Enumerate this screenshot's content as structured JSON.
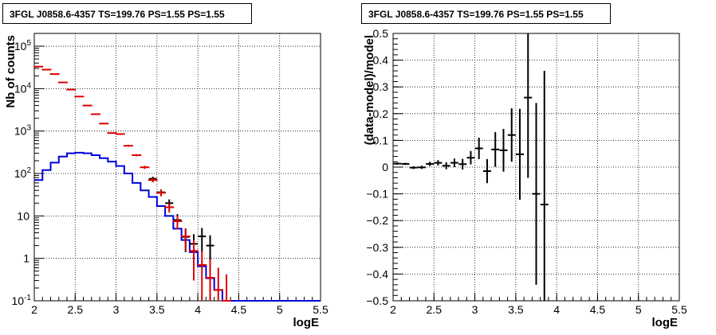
{
  "chart_data": [
    {
      "type": "line",
      "title": "3FGL J0858.6-4357 TS=199.76 PS=1.55 PS=1.55",
      "xlabel": "logE",
      "ylabel": "Nb of counts",
      "xlim": [
        2,
        5.5
      ],
      "ylim": [
        0.1,
        200000
      ],
      "yscale": "log",
      "grid": true,
      "x_ticks": [
        "2",
        "2.5",
        "3",
        "3.5",
        "4",
        "4.5",
        "5",
        "5.5"
      ],
      "y_ticks": [
        "10^-1",
        "1",
        "10",
        "10^2",
        "10^3",
        "10^4",
        "10^5"
      ],
      "bin_edges": [
        2.0,
        2.1,
        2.2,
        2.3,
        2.4,
        2.5,
        2.6,
        2.7,
        2.8,
        2.9,
        3.0,
        3.1,
        3.2,
        3.3,
        3.4,
        3.5,
        3.6,
        3.7,
        3.8,
        3.9,
        4.0,
        4.1,
        4.2,
        4.3,
        4.4,
        4.5,
        4.6,
        4.7,
        4.8,
        4.9,
        5.0,
        5.1,
        5.2,
        5.3,
        5.4,
        5.5
      ],
      "series": [
        {
          "color": "#0000dd",
          "style": "step",
          "values": [
            70,
            120,
            180,
            250,
            300,
            310,
            300,
            270,
            230,
            190,
            150,
            100,
            60,
            40,
            28,
            17,
            10,
            5,
            2.7,
            1.4,
            0.65,
            0.34,
            0.18,
            0.1,
            0.1,
            0.1,
            0.1,
            0.1,
            0.1,
            0.1,
            0.1,
            0.1,
            0.1,
            0.1,
            0.1
          ]
        },
        {
          "color": "#000000",
          "style": "errorbar",
          "x": [
            3.45,
            3.55,
            3.65,
            3.75,
            3.85,
            3.95,
            4.05,
            4.15
          ],
          "y": [
            75,
            36,
            20,
            8,
            3.2,
            2.2,
            3.3,
            2.0
          ],
          "yerr": [
            9,
            6,
            4.5,
            3,
            1.8,
            1.5,
            1.9,
            1.5
          ]
        },
        {
          "color": "#dd0000",
          "style": "errorbar",
          "x": [
            2.05,
            2.15,
            2.25,
            2.35,
            2.45,
            2.55,
            2.65,
            2.75,
            2.85,
            2.95,
            3.05,
            3.15,
            3.25,
            3.35,
            3.45,
            3.55,
            3.65,
            3.75,
            3.85,
            3.95,
            4.05,
            4.15,
            4.25,
            4.35
          ],
          "y": [
            33000,
            28000,
            22000,
            14000,
            9500,
            6500,
            4000,
            2500,
            1500,
            900,
            850,
            450,
            270,
            140,
            70,
            35,
            16,
            7.5,
            3.3,
            1.5,
            0.7,
            0.35,
            0.18,
            0.1
          ],
          "yerr": [
            180,
            165,
            150,
            120,
            100,
            80,
            63,
            50,
            39,
            30,
            29,
            21,
            16,
            12,
            8,
            6,
            4,
            2.7,
            1.8,
            1.2,
            0.8,
            0.6,
            0.42,
            0.32
          ]
        }
      ]
    },
    {
      "type": "scatter",
      "title": "3FGL J0858.6-4357 TS=199.76 PS=1.55 PS=1.55",
      "xlabel": "logE",
      "ylabel": "(data-model)/model",
      "xlim": [
        2,
        5.5
      ],
      "ylim": [
        -0.5,
        0.5
      ],
      "grid": true,
      "x_ticks": [
        "2",
        "2.5",
        "3",
        "3.5",
        "4",
        "4.5",
        "5",
        "5.5"
      ],
      "y_ticks": [
        "-0.5",
        "-0.4",
        "-0.3",
        "-0.2",
        "-0.1",
        "0",
        "0.1",
        "0.2",
        "0.3",
        "0.4",
        "0.5"
      ],
      "series": [
        {
          "color": "#000000",
          "style": "errorbar",
          "x": [
            2.05,
            2.15,
            2.25,
            2.35,
            2.45,
            2.55,
            2.65,
            2.75,
            2.85,
            2.95,
            3.05,
            3.15,
            3.25,
            3.35,
            3.45,
            3.55,
            3.65,
            3.75,
            3.85
          ],
          "y": [
            0.013,
            0.012,
            -0.002,
            -0.001,
            0.012,
            0.016,
            0.005,
            0.016,
            0.011,
            0.035,
            0.07,
            -0.015,
            0.066,
            0.063,
            0.12,
            0.048,
            0.26,
            -0.1,
            -0.14
          ],
          "yerr": [
            0.004,
            0.004,
            0.005,
            0.006,
            0.008,
            0.01,
            0.013,
            0.016,
            0.02,
            0.025,
            0.04,
            0.045,
            0.065,
            0.08,
            0.1,
            0.17,
            0.3,
            0.34,
            0.5
          ]
        }
      ]
    }
  ]
}
